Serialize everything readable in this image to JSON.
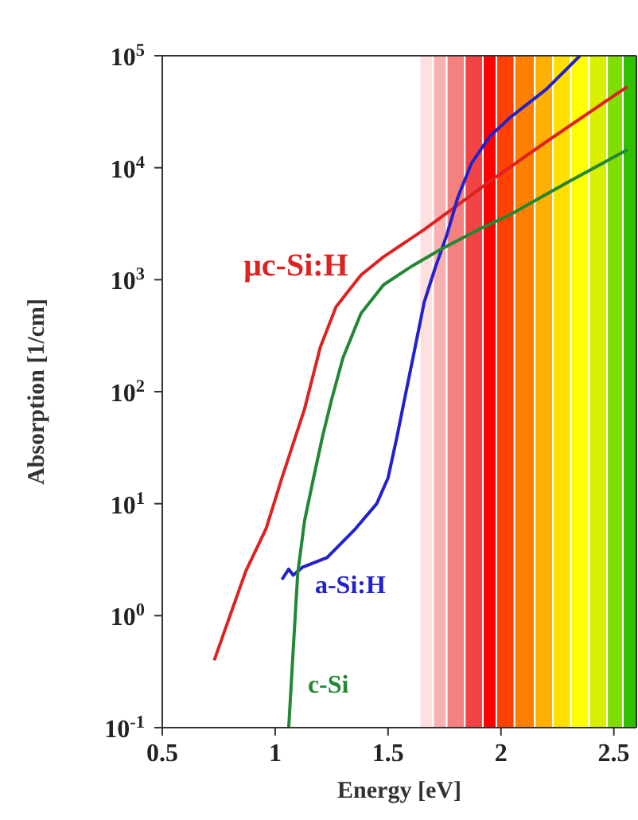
{
  "chart_data": {
    "type": "line",
    "xlabel": "Energy [eV]",
    "ylabel": "Absorption [1/cm]",
    "log": "y",
    "legend": false,
    "marker": "none",
    "line_style": "solid",
    "xlim": [
      0.5,
      2.6
    ],
    "xticks": [
      0.5,
      1,
      1.5,
      2,
      2.5
    ],
    "ylim": [
      0.1,
      100000
    ],
    "yticks": [
      {
        "value": 0.1,
        "label": "10$^{-1}$"
      },
      {
        "value": 1,
        "label": "10$^{0}$"
      },
      {
        "value": 10,
        "label": "10$^{1}$"
      },
      {
        "value": 100,
        "label": "10$^{2}$"
      },
      {
        "value": 1000,
        "label": "10$^{3}$"
      },
      {
        "value": 10000,
        "label": "10$^{4}$"
      },
      {
        "value": 100000,
        "label": "10$^{5}$"
      }
    ],
    "series": [
      {
        "name": "μc-Si:H",
        "color": "#dd2222",
        "x": [
          0.73,
          0.8,
          0.87,
          0.96,
          1.03,
          1.13,
          1.2,
          1.27,
          1.38,
          1.48,
          1.66,
          1.8,
          1.94,
          2.2,
          2.4,
          2.56
        ],
        "values": [
          0.4,
          1.0,
          2.5,
          6,
          17,
          70,
          250,
          575,
          1100,
          1600,
          2800,
          4500,
          7300,
          17000,
          32000,
          53000
        ]
      },
      {
        "name": "a-Si:H",
        "color": "#2222cc",
        "x": [
          1.03,
          1.06,
          1.08,
          1.12,
          1.23,
          1.35,
          1.45,
          1.5,
          1.54,
          1.57,
          1.62,
          1.66,
          1.71,
          1.76,
          1.81,
          1.87,
          1.95,
          2.04,
          2.2,
          2.35
        ],
        "values": [
          2.1,
          2.6,
          2.3,
          2.7,
          3.3,
          5.8,
          10,
          17,
          40,
          80,
          250,
          630,
          1300,
          2500,
          5500,
          11000,
          19000,
          28000,
          50000,
          100000
        ]
      },
      {
        "name": "c-Si",
        "color": "#228833",
        "x": [
          1.06,
          1.08,
          1.1,
          1.13,
          1.17,
          1.21,
          1.25,
          1.3,
          1.38,
          1.48,
          1.6,
          1.73,
          1.9,
          2.04,
          2.3,
          2.56
        ],
        "values": [
          0.1,
          0.5,
          2.4,
          7,
          17,
          40,
          85,
          200,
          500,
          900,
          1300,
          1850,
          2800,
          3800,
          7500,
          14500
        ]
      }
    ],
    "bands": [
      {
        "axis": "x",
        "from": 1.64,
        "to": 1.7,
        "color": "#fde0e0"
      },
      {
        "axis": "x",
        "from": 1.7,
        "to": 1.76,
        "color": "#f9b0b0"
      },
      {
        "axis": "x",
        "from": 1.76,
        "to": 1.84,
        "color": "#f58080"
      },
      {
        "axis": "x",
        "from": 1.84,
        "to": 1.92,
        "color": "#f24444"
      },
      {
        "axis": "x",
        "from": 1.92,
        "to": 1.98,
        "color": "#ff0000"
      },
      {
        "axis": "x",
        "from": 1.98,
        "to": 2.06,
        "color": "#ff4000"
      },
      {
        "axis": "x",
        "from": 2.06,
        "to": 2.15,
        "color": "#ff8000"
      },
      {
        "axis": "x",
        "from": 2.15,
        "to": 2.23,
        "color": "#ffb000"
      },
      {
        "axis": "x",
        "from": 2.23,
        "to": 2.31,
        "color": "#ffe000"
      },
      {
        "axis": "x",
        "from": 2.31,
        "to": 2.39,
        "color": "#ffff00"
      },
      {
        "axis": "x",
        "from": 2.39,
        "to": 2.47,
        "color": "#d8f000"
      },
      {
        "axis": "x",
        "from": 2.47,
        "to": 2.54,
        "color": "#80dd00"
      },
      {
        "axis": "x",
        "from": 2.54,
        "to": 2.6,
        "color": "#30c000"
      }
    ]
  }
}
